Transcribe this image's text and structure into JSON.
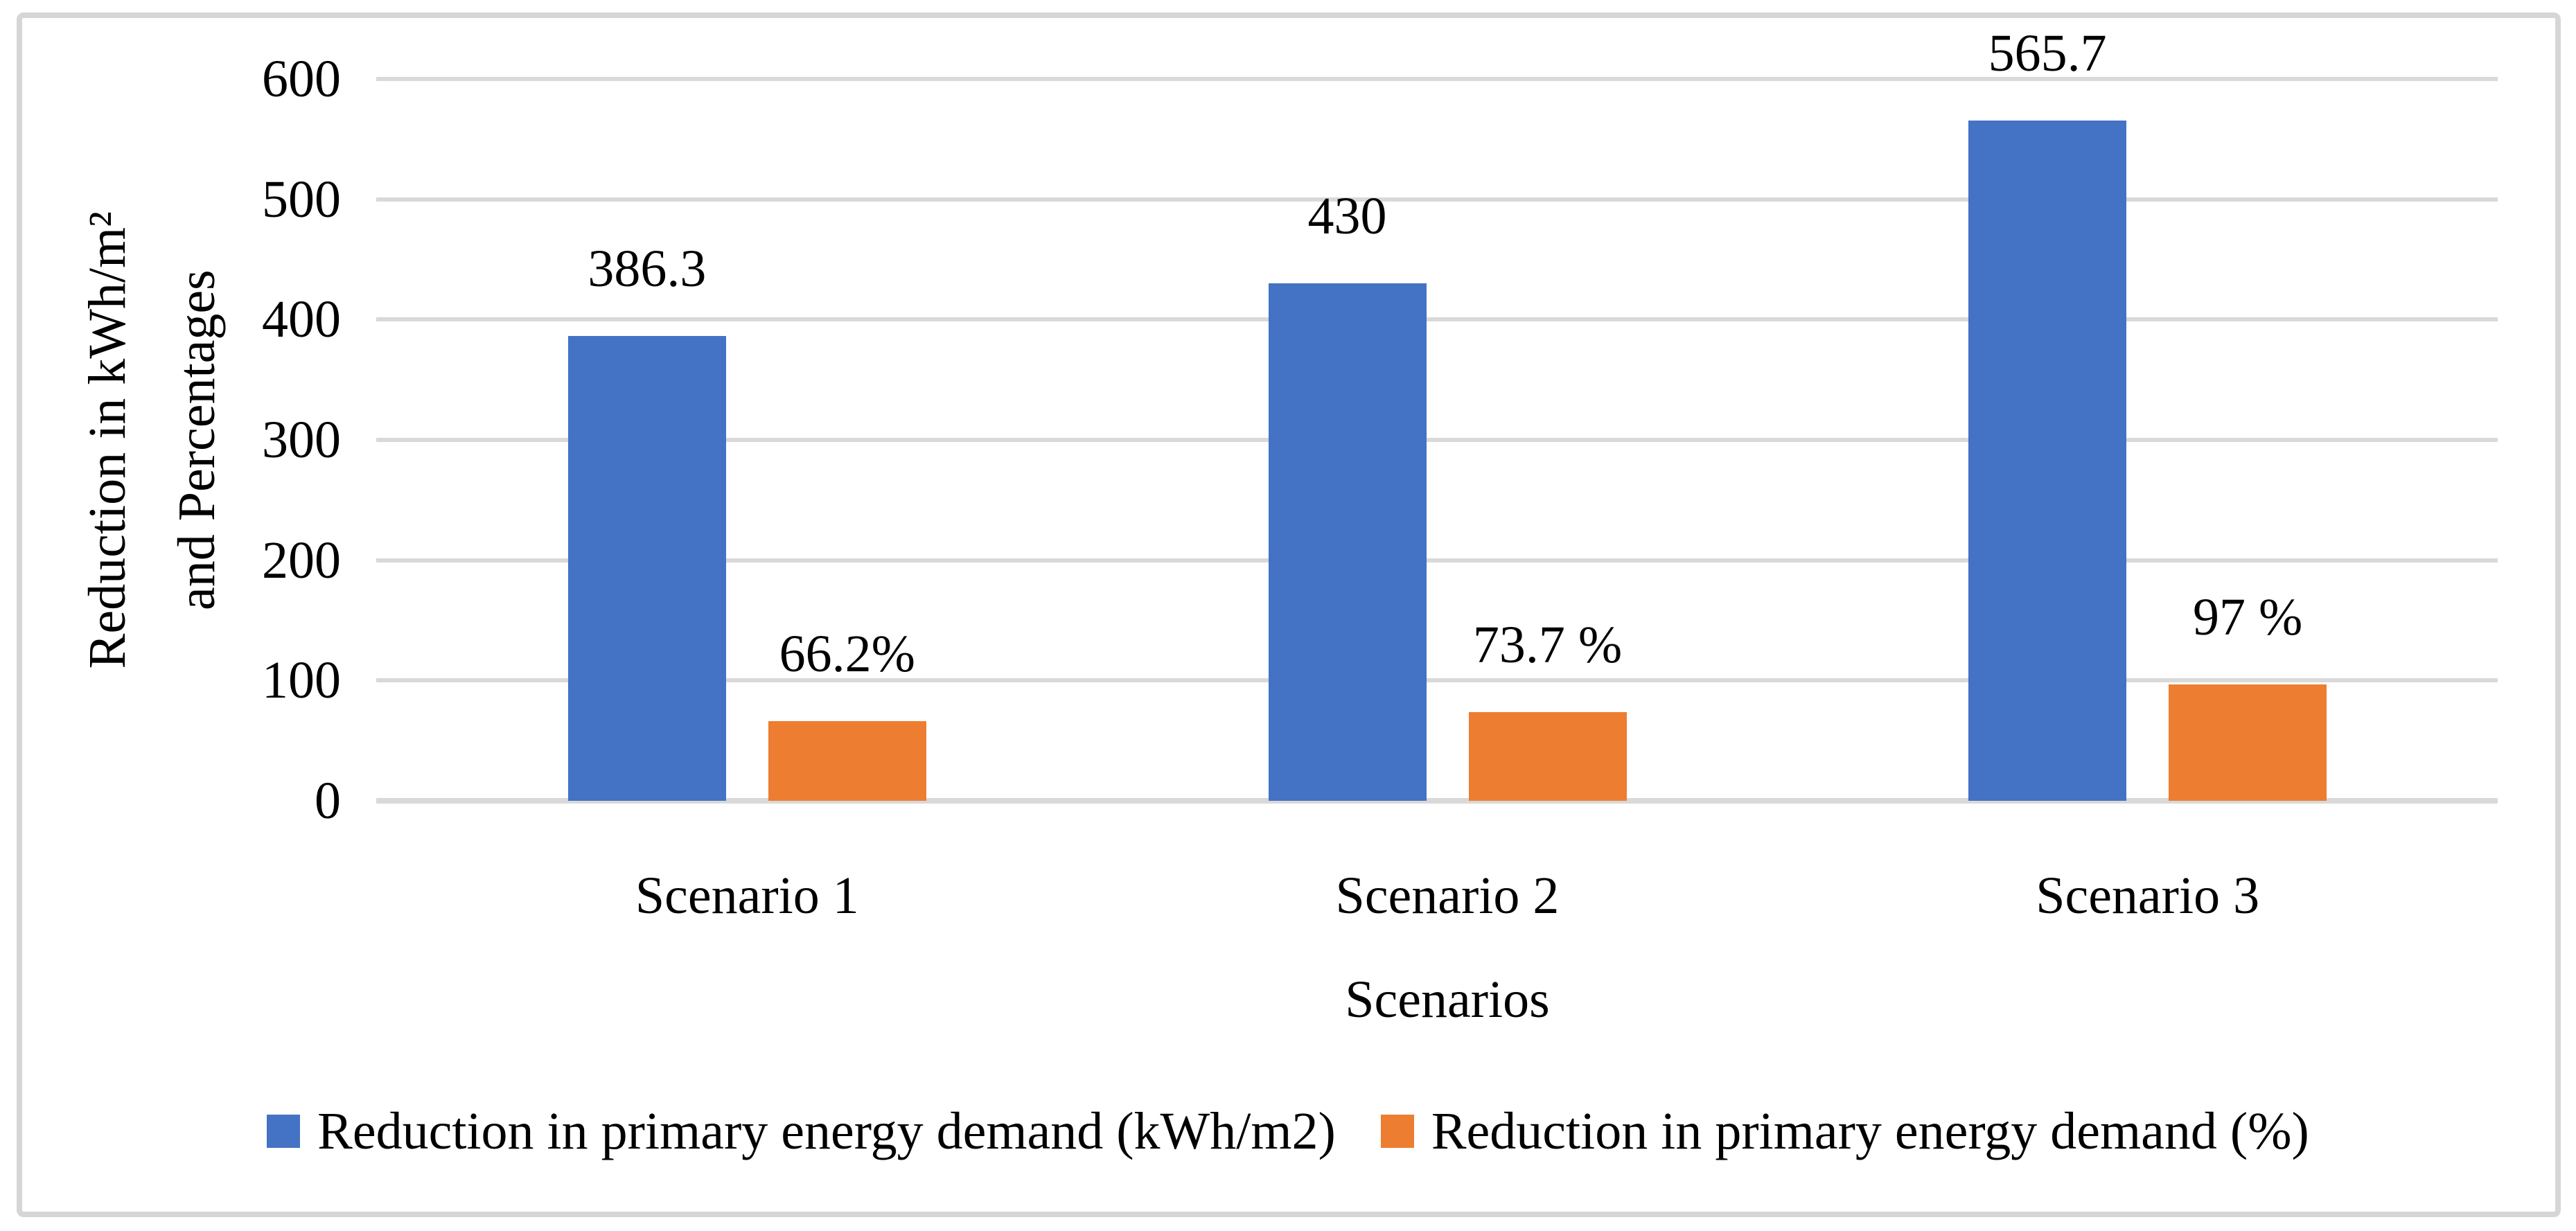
{
  "figure": {
    "background": "#ffffff",
    "border_color": "#d6d6d6",
    "gridline_color": "#d9d9d9"
  },
  "chart_data": {
    "type": "bar",
    "title": "",
    "categories": [
      "Scenario 1",
      "Scenario 2",
      "Scenario 3"
    ],
    "series": [
      {
        "name": "Reduction in primary energy demand (kWh/m2)",
        "color": "#4472C4",
        "values": [
          386.3,
          430,
          565.7
        ],
        "data_labels": [
          "386.3",
          "430",
          "565.7"
        ]
      },
      {
        "name": "Reduction in primary energy demand (%)",
        "color": "#ED7D31",
        "values": [
          66.2,
          73.7,
          97
        ],
        "data_labels": [
          "66.2%",
          "73.7 %",
          "97 %"
        ]
      }
    ],
    "xlabel": "Scenarios",
    "ylabel_line1": "Reduction in kWh/m²",
    "ylabel_line2": "and Percentages",
    "ylim": [
      0,
      600
    ],
    "yticks": [
      0,
      100,
      200,
      300,
      400,
      500,
      600
    ],
    "grid": true,
    "legend_position": "bottom"
  }
}
